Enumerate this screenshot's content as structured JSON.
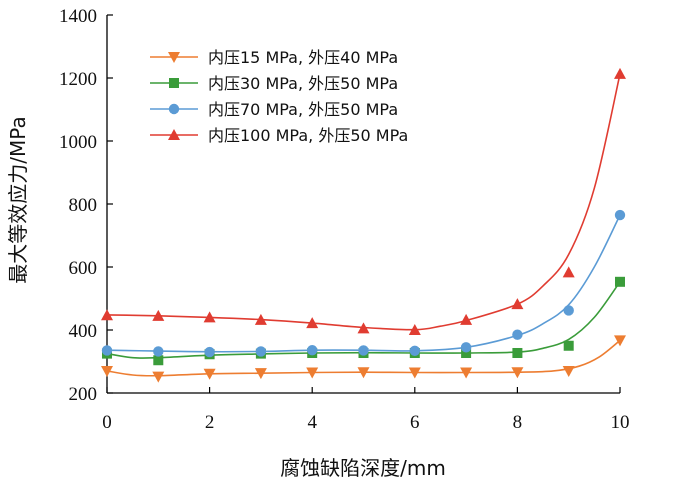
{
  "chart_data": {
    "type": "line",
    "title": "",
    "xlabel": "腐蚀缺陷深度/mm",
    "ylabel": "最大等效应力/MPa",
    "xlim": [
      0,
      10
    ],
    "ylim": [
      200,
      1400
    ],
    "xticks": [
      0,
      2,
      4,
      6,
      8,
      10
    ],
    "yticks": [
      200,
      400,
      600,
      800,
      1000,
      1200,
      1400
    ],
    "grid": false,
    "legend_position": "top-left",
    "x": [
      0,
      1,
      2,
      3,
      4,
      5,
      6,
      7,
      8,
      9,
      10
    ],
    "series": [
      {
        "name": "内压15 MPa, 外压40 MPa",
        "color": "#ED7D31",
        "marker": "triangle-down",
        "values": [
          270,
          252,
          261,
          263,
          265,
          266,
          265,
          265,
          266,
          270,
          367
        ],
        "curve": [
          [
            0,
            270
          ],
          [
            0.5,
            257
          ],
          [
            1,
            255
          ],
          [
            2,
            261
          ],
          [
            3,
            263
          ],
          [
            4,
            265
          ],
          [
            5,
            266
          ],
          [
            6,
            265
          ],
          [
            7,
            265
          ],
          [
            8,
            266
          ],
          [
            8.7,
            270
          ],
          [
            9.2,
            285
          ],
          [
            9.6,
            315
          ],
          [
            10,
            367
          ]
        ]
      },
      {
        "name": "内压30 MPa, 外压50 MPa",
        "color": "#3A9C3A",
        "marker": "square",
        "values": [
          325,
          304,
          323,
          325,
          327,
          327,
          327,
          327,
          327,
          350,
          553
        ],
        "curve": [
          [
            0,
            325
          ],
          [
            0.5,
            312
          ],
          [
            1,
            312
          ],
          [
            2,
            320
          ],
          [
            3,
            324
          ],
          [
            4,
            327
          ],
          [
            5,
            328
          ],
          [
            6,
            327
          ],
          [
            7,
            327
          ],
          [
            8,
            330
          ],
          [
            8.5,
            342
          ],
          [
            9,
            370
          ],
          [
            9.5,
            440
          ],
          [
            10,
            553
          ]
        ]
      },
      {
        "name": "内压70 MPa, 外压50 MPa",
        "color": "#5B9BD5",
        "marker": "circle",
        "values": [
          335,
          332,
          330,
          332,
          336,
          335,
          334,
          345,
          385,
          462,
          765
        ],
        "curve": [
          [
            0,
            336
          ],
          [
            1,
            333
          ],
          [
            2,
            331
          ],
          [
            3,
            332
          ],
          [
            4,
            336
          ],
          [
            5,
            336
          ],
          [
            6,
            334
          ],
          [
            7,
            345
          ],
          [
            8,
            383
          ],
          [
            8.5,
            420
          ],
          [
            9,
            480
          ],
          [
            9.5,
            600
          ],
          [
            10,
            765
          ]
        ]
      },
      {
        "name": "内压100 MPa, 外压50 MPa",
        "color": "#E03C31",
        "marker": "triangle-up",
        "values": [
          447,
          445,
          440,
          432,
          422,
          405,
          400,
          432,
          482,
          583,
          1213
        ],
        "curve": [
          [
            0,
            448
          ],
          [
            1,
            445
          ],
          [
            2,
            440
          ],
          [
            3,
            433
          ],
          [
            4,
            422
          ],
          [
            5,
            408
          ],
          [
            6,
            401
          ],
          [
            6.5,
            412
          ],
          [
            7,
            430
          ],
          [
            8,
            482
          ],
          [
            8.5,
            540
          ],
          [
            9,
            640
          ],
          [
            9.5,
            850
          ],
          [
            10,
            1213
          ]
        ]
      }
    ]
  }
}
